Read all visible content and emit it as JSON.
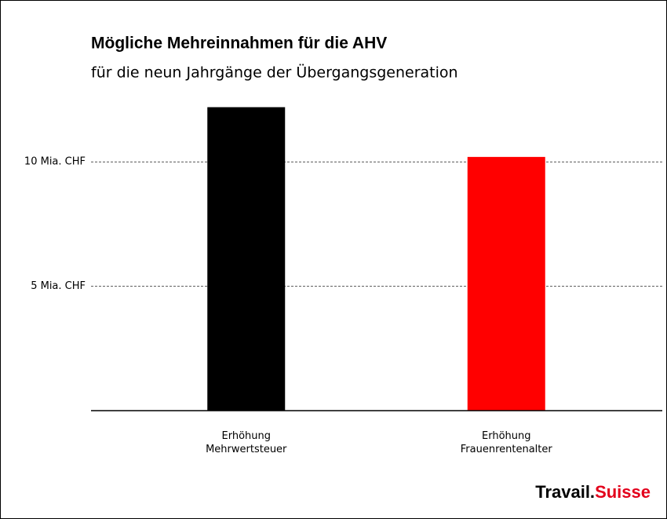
{
  "chart_data": {
    "type": "bar",
    "title": "Mögliche Mehreinnahmen für die AHV",
    "subtitle": "für die neun Jahrgänge der Übergangsgeneration",
    "categories": [
      "Erhöhung\nMehrwertsteuer",
      "Erhöhung\nFrauenrentenalter"
    ],
    "values": [
      12.2,
      10.2
    ],
    "colors": [
      "#000000",
      "#ff0000"
    ],
    "ylim": [
      0,
      12.5
    ],
    "yticks": [
      {
        "value": 5,
        "label": "5 Mia. CHF"
      },
      {
        "value": 10,
        "label": "10 Mia. CHF"
      }
    ],
    "grid": true
  },
  "brand": {
    "part1": "Travail.",
    "part2": "Suisse"
  }
}
